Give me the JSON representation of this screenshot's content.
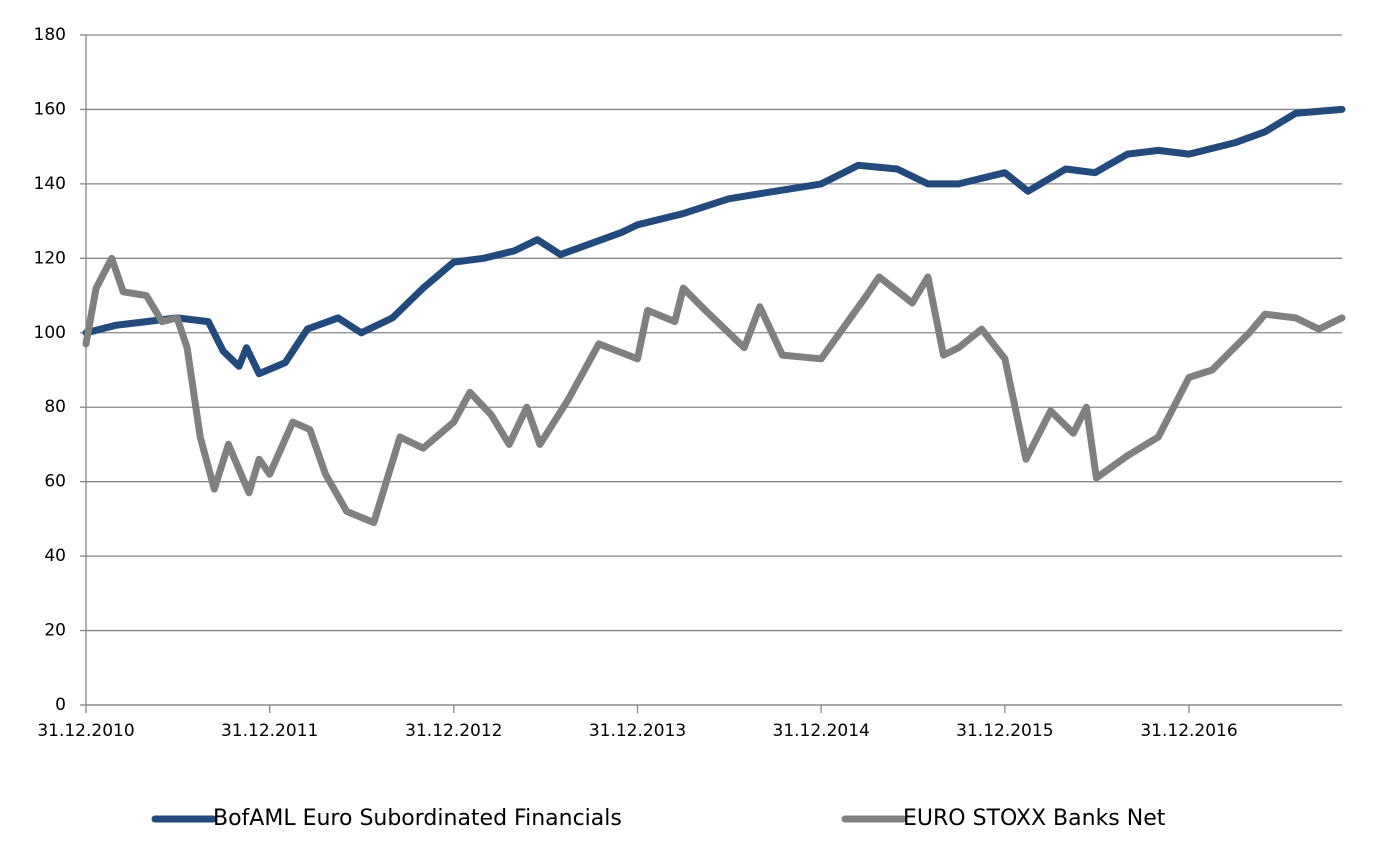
{
  "chart_data": {
    "type": "line",
    "xlim": [
      "2010-12-31",
      "2017-10-31"
    ],
    "xticks": [
      {
        "value": "2010-12-31",
        "label": "31.12.2010"
      },
      {
        "value": "2011-12-31",
        "label": "31.12.2011"
      },
      {
        "value": "2012-12-31",
        "label": "31.12.2012"
      },
      {
        "value": "2013-12-31",
        "label": "31.12.2013"
      },
      {
        "value": "2014-12-31",
        "label": "31.12.2014"
      },
      {
        "value": "2015-12-31",
        "label": "31.12.2015"
      },
      {
        "value": "2016-12-31",
        "label": "31.12.2016"
      }
    ],
    "ylim": [
      0,
      180
    ],
    "yticks": [
      0,
      20,
      40,
      60,
      80,
      100,
      120,
      140,
      160,
      180
    ],
    "grid": true,
    "legend": "bottom",
    "series": [
      {
        "name": "BofAML Euro Subordinated Financials",
        "color": "#234a7c",
        "x": [
          "2010-12-31",
          "2011-02-28",
          "2011-04-30",
          "2011-06-30",
          "2011-08-31",
          "2011-09-30",
          "2011-10-31",
          "2011-11-15",
          "2011-12-10",
          "2012-01-31",
          "2012-03-15",
          "2012-05-15",
          "2012-06-30",
          "2012-08-31",
          "2012-10-31",
          "2012-12-31",
          "2013-02-28",
          "2013-04-30",
          "2013-06-15",
          "2013-07-31",
          "2013-09-30",
          "2013-11-30",
          "2013-12-31",
          "2014-03-31",
          "2014-06-30",
          "2014-09-30",
          "2014-12-31",
          "2015-03-15",
          "2015-05-31",
          "2015-07-31",
          "2015-09-30",
          "2015-12-31",
          "2016-02-15",
          "2016-04-30",
          "2016-06-27",
          "2016-08-31",
          "2016-10-31",
          "2016-12-31",
          "2017-03-31",
          "2017-05-31",
          "2017-07-31",
          "2017-10-31"
        ],
        "values": [
          100,
          102,
          103,
          104,
          103,
          95,
          91,
          96,
          89,
          92,
          101,
          104,
          100,
          104,
          112,
          119,
          120,
          122,
          125,
          121,
          124,
          127,
          129,
          132,
          136,
          138,
          140,
          145,
          144,
          140,
          140,
          143,
          138,
          144,
          143,
          148,
          149,
          148,
          151,
          154,
          159,
          160
        ]
      },
      {
        "name": "EURO STOXX Banks Net",
        "color": "#808080",
        "x": [
          "2010-12-31",
          "2011-01-20",
          "2011-02-20",
          "2011-03-15",
          "2011-04-30",
          "2011-05-31",
          "2011-06-30",
          "2011-07-20",
          "2011-08-15",
          "2011-09-12",
          "2011-10-10",
          "2011-11-20",
          "2011-12-10",
          "2011-12-31",
          "2012-02-15",
          "2012-03-20",
          "2012-04-20",
          "2012-06-01",
          "2012-07-25",
          "2012-09-15",
          "2012-10-31",
          "2012-12-31",
          "2013-02-01",
          "2013-03-15",
          "2013-04-20",
          "2013-05-25",
          "2013-06-20",
          "2013-08-15",
          "2013-10-15",
          "2013-12-31",
          "2014-01-20",
          "2014-03-15",
          "2014-04-01",
          "2014-05-15",
          "2014-07-31",
          "2014-08-31",
          "2014-10-15",
          "2014-12-31",
          "2015-03-31",
          "2015-04-25",
          "2015-06-30",
          "2015-07-31",
          "2015-08-31",
          "2015-09-30",
          "2015-11-15",
          "2015-12-31",
          "2016-02-11",
          "2016-03-31",
          "2016-05-15",
          "2016-06-10",
          "2016-06-30",
          "2016-08-31",
          "2016-10-31",
          "2016-12-31",
          "2017-02-15",
          "2017-03-31",
          "2017-04-30",
          "2017-05-31",
          "2017-07-31",
          "2017-09-15",
          "2017-10-31"
        ],
        "values": [
          97,
          112,
          120,
          111,
          110,
          103,
          104,
          96,
          72,
          58,
          70,
          57,
          66,
          62,
          76,
          74,
          62,
          52,
          49,
          72,
          69,
          76,
          84,
          78,
          70,
          80,
          70,
          82,
          97,
          93,
          106,
          103,
          112,
          106,
          96,
          107,
          94,
          93,
          110,
          115,
          108,
          115,
          94,
          96,
          101,
          93,
          66,
          79,
          73,
          80,
          61,
          67,
          72,
          88,
          90,
          96,
          100,
          105,
          104,
          101,
          104
        ]
      }
    ]
  }
}
